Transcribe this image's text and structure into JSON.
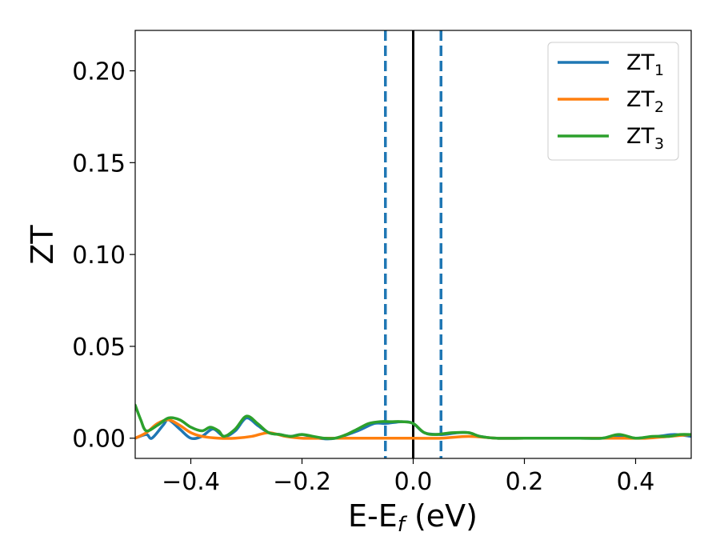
{
  "chart_data": {
    "type": "line",
    "xlabel": "E-E",
    "xlabel_sub": "f",
    "xlabel_unit": "(eV)",
    "ylabel": "ZT",
    "xlim": [
      -0.5,
      0.5
    ],
    "ylim": [
      -0.011,
      0.222
    ],
    "xticks": [
      -0.4,
      -0.2,
      0.0,
      0.2,
      0.4
    ],
    "xtick_labels": [
      "−0.4",
      "−0.2",
      "0.0",
      "0.2",
      "0.4"
    ],
    "yticks": [
      0.0,
      0.05,
      0.1,
      0.15,
      0.2
    ],
    "ytick_labels": [
      "0.00",
      "0.05",
      "0.10",
      "0.15",
      "0.20"
    ],
    "grid": false,
    "legend_position": "top-right",
    "vlines": [
      {
        "x": -0.05,
        "style": "dashed",
        "color": "#1f77b4"
      },
      {
        "x": 0.0,
        "style": "solid",
        "color": "#000000"
      },
      {
        "x": 0.05,
        "style": "dashed",
        "color": "#1f77b4"
      }
    ],
    "series": [
      {
        "name": "ZT",
        "subscript": "1",
        "color": "#1f77b4",
        "x": [
          -0.5,
          -0.48,
          -0.47,
          -0.45,
          -0.44,
          -0.42,
          -0.4,
          -0.38,
          -0.36,
          -0.34,
          -0.32,
          -0.3,
          -0.28,
          -0.26,
          -0.24,
          -0.22,
          -0.2,
          -0.17,
          -0.14,
          -0.1,
          -0.07,
          -0.05,
          -0.02,
          0.0,
          0.02,
          0.05,
          0.08,
          0.1,
          0.12,
          0.15,
          0.2,
          0.25,
          0.3,
          0.34,
          0.37,
          0.4,
          0.44,
          0.47,
          0.5
        ],
        "y": [
          0.0,
          0.002,
          0.0,
          0.007,
          0.01,
          0.005,
          0.0,
          0.001,
          0.005,
          0.001,
          0.004,
          0.011,
          0.007,
          0.003,
          0.002,
          0.001,
          0.002,
          0.0,
          0.0,
          0.004,
          0.008,
          0.008,
          0.009,
          0.008,
          0.003,
          0.002,
          0.003,
          0.003,
          0.001,
          0.0,
          0.0,
          0.0,
          0.0,
          0.0,
          0.001,
          0.0,
          0.001,
          0.002,
          0.001
        ]
      },
      {
        "name": "ZT",
        "subscript": "2",
        "color": "#ff7f0e",
        "x": [
          -0.5,
          -0.48,
          -0.46,
          -0.44,
          -0.42,
          -0.4,
          -0.38,
          -0.35,
          -0.32,
          -0.29,
          -0.26,
          -0.23,
          -0.2,
          -0.16,
          -0.12,
          -0.08,
          -0.04,
          0.0,
          0.05,
          0.1,
          0.15,
          0.2,
          0.25,
          0.3,
          0.35,
          0.38,
          0.42,
          0.46,
          0.5
        ],
        "y": [
          0.0,
          0.003,
          0.008,
          0.01,
          0.007,
          0.003,
          0.001,
          0.0,
          0.0,
          0.001,
          0.003,
          0.001,
          0.0,
          0.0,
          0.0,
          0.0,
          0.0,
          0.0,
          0.0,
          0.001,
          0.0,
          0.0,
          0.0,
          0.0,
          0.0,
          0.0,
          0.0,
          0.001,
          0.002
        ]
      },
      {
        "name": "ZT",
        "subscript": "3",
        "color": "#2ca02c",
        "x": [
          -0.5,
          -0.49,
          -0.48,
          -0.46,
          -0.44,
          -0.42,
          -0.4,
          -0.38,
          -0.365,
          -0.35,
          -0.34,
          -0.32,
          -0.3,
          -0.28,
          -0.26,
          -0.24,
          -0.22,
          -0.2,
          -0.18,
          -0.16,
          -0.14,
          -0.12,
          -0.1,
          -0.08,
          -0.06,
          -0.04,
          -0.02,
          0.0,
          0.02,
          0.04,
          0.07,
          0.1,
          0.12,
          0.15,
          0.2,
          0.25,
          0.3,
          0.34,
          0.37,
          0.4,
          0.43,
          0.46,
          0.48,
          0.5
        ],
        "y": [
          0.018,
          0.01,
          0.004,
          0.007,
          0.011,
          0.01,
          0.006,
          0.004,
          0.006,
          0.004,
          0.001,
          0.005,
          0.012,
          0.008,
          0.003,
          0.002,
          0.001,
          0.002,
          0.001,
          0.0,
          0.0,
          0.002,
          0.005,
          0.008,
          0.009,
          0.009,
          0.009,
          0.008,
          0.003,
          0.002,
          0.003,
          0.003,
          0.001,
          0.0,
          0.0,
          0.0,
          0.0,
          0.0,
          0.002,
          0.0,
          0.001,
          0.001,
          0.002,
          0.002
        ]
      }
    ]
  }
}
